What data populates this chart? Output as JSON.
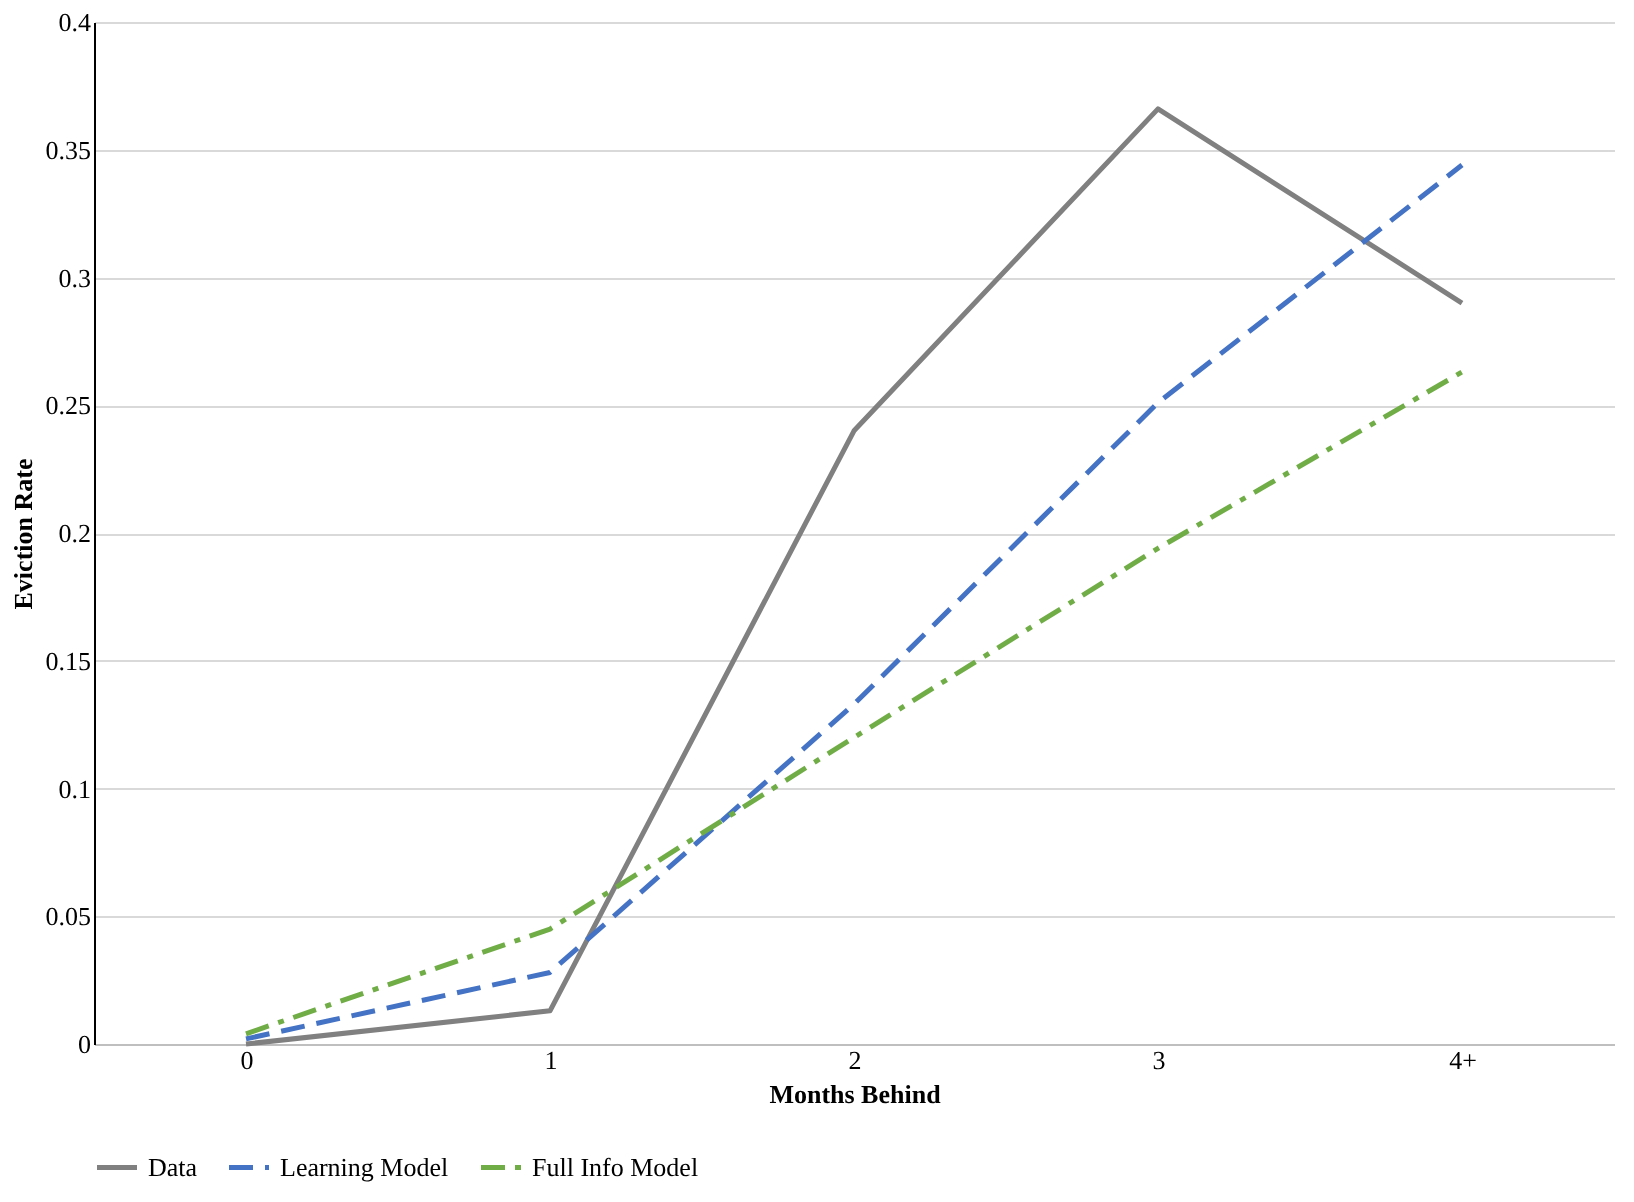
{
  "chart_data": {
    "type": "line",
    "xlabel": "Months Behind",
    "ylabel": "Eviction Rate",
    "categories": [
      "0",
      "1",
      "2",
      "3",
      "4+"
    ],
    "series": [
      {
        "name": "Data",
        "color": "#808080",
        "line_style": "solid",
        "values": [
          0.0,
          0.013,
          0.24,
          0.366,
          0.29
        ]
      },
      {
        "name": "Learning Model",
        "color": "#4472c4",
        "line_style": "dashed",
        "values": [
          0.002,
          0.028,
          0.133,
          0.251,
          0.344
        ]
      },
      {
        "name": "Full Info Model",
        "color": "#70ad47",
        "line_style": "dashed",
        "values": [
          0.004,
          0.045,
          0.12,
          0.194,
          0.263
        ]
      }
    ],
    "ylim": [
      0,
      0.4
    ],
    "yticks": [
      0,
      0.05,
      0.1,
      0.15,
      0.2,
      0.25,
      0.3,
      0.35,
      0.4
    ],
    "grid": "y",
    "legend": "bottom",
    "marker": "none"
  }
}
